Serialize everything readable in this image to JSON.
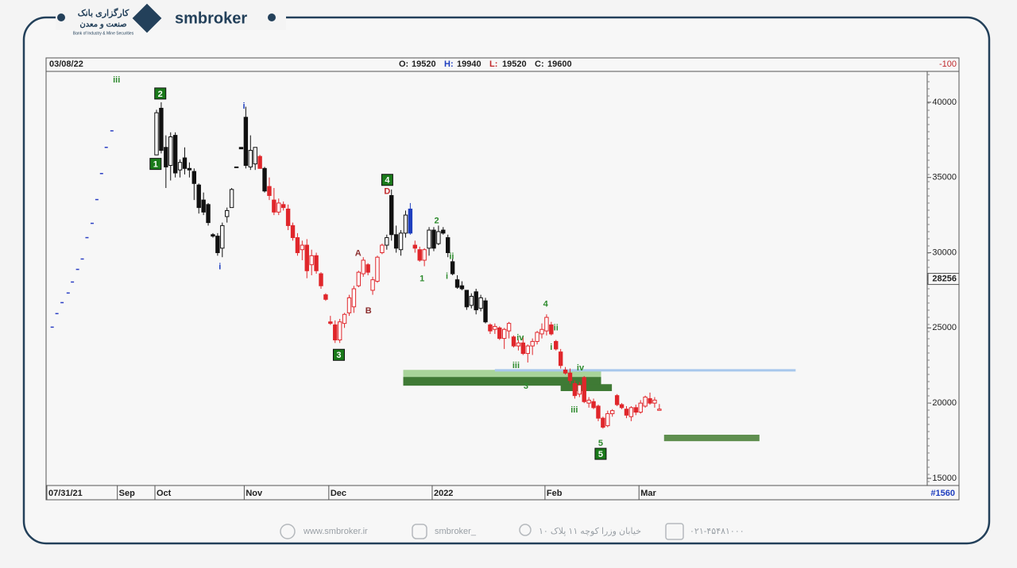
{
  "header": {
    "brand": "smbroker",
    "logo_line1": "کارگزاری بانک",
    "logo_line2": "صنعت و معدن",
    "logo_line3": "Bank of Industry & Mine Securities"
  },
  "footer": {
    "website": "www.smbroker.ir",
    "instagram": "smbroker_",
    "address": "خیابان وزرا کوچه ۱۱ پلاک ۱۰",
    "phone": "۰۲۱-۴۵۴۸۱۰۰۰"
  },
  "chart_data": {
    "type": "candlestick",
    "date": "03/08/22",
    "ohlc_header": [
      {
        "label": "O:",
        "value": 19520
      },
      {
        "label": "H:",
        "value": 19940
      },
      {
        "label": "L:",
        "value": 19520
      },
      {
        "label": "C:",
        "value": 19600
      }
    ],
    "corner_value": -100,
    "bar_count": "#1560",
    "price_marker": 28256,
    "xlim": [
      0.5,
      188
    ],
    "ylim": [
      14630,
      42050
    ],
    "xticks": [
      {
        "value": 1,
        "label": "07/31/21"
      },
      {
        "value": 16,
        "label": "Sep"
      },
      {
        "value": 24,
        "label": "Oct"
      },
      {
        "value": 43,
        "label": "Nov"
      },
      {
        "value": 61,
        "label": "Dec"
      },
      {
        "value": 83,
        "label": "2022"
      },
      {
        "value": 107,
        "label": "Feb"
      },
      {
        "value": 127,
        "label": "Mar"
      }
    ],
    "yticks": [
      15000,
      20000,
      25000,
      30000,
      35000,
      40000
    ],
    "series": [
      {
        "color": "#111111",
        "x": [
          24,
          25,
          26,
          27,
          28,
          29,
          30,
          31,
          32,
          33,
          34,
          35,
          36,
          37,
          38,
          39,
          40,
          41,
          42,
          43,
          44,
          45,
          47,
          73,
          74,
          75,
          76,
          77,
          82,
          83,
          84,
          85,
          86,
          87,
          88,
          89,
          90,
          91,
          92,
          93,
          94
        ],
        "ohlc": [
          [
            36500,
            39500,
            36500,
            39300
          ],
          [
            39600,
            40000,
            36600,
            36800
          ],
          [
            37000,
            37800,
            34300,
            35700
          ],
          [
            35800,
            38000,
            34800,
            37700
          ],
          [
            37800,
            38000,
            35000,
            35300
          ],
          [
            35500,
            36200,
            35000,
            36000
          ],
          [
            36300,
            37000,
            35200,
            35600
          ],
          [
            35600,
            36000,
            35000,
            35500
          ],
          [
            35400,
            35600,
            33500,
            34600
          ],
          [
            34500,
            34600,
            32600,
            33000
          ],
          [
            33500,
            34000,
            32500,
            32700
          ],
          [
            33200,
            33300,
            31800,
            32000
          ],
          [
            31200,
            31300,
            31000,
            31100
          ],
          [
            31100,
            31300,
            29800,
            30000
          ],
          [
            30300,
            32000,
            29700,
            31800
          ],
          [
            32400,
            33000,
            32000,
            32800
          ],
          [
            33000,
            34300,
            33000,
            34200
          ],
          [
            35700,
            35700,
            35700,
            35700
          ],
          [
            37000,
            37000,
            36900,
            36900
          ],
          [
            39000,
            39700,
            35600,
            35800
          ],
          [
            35700,
            37800,
            35500,
            36800
          ],
          [
            35900,
            37000,
            35500,
            37000
          ],
          [
            35600,
            35700,
            34000,
            34100
          ],
          [
            30500,
            31200,
            30200,
            31000
          ],
          [
            33800,
            34200,
            30800,
            31200
          ],
          [
            31200,
            31800,
            30000,
            30300
          ],
          [
            30200,
            31500,
            29800,
            31300
          ],
          [
            31300,
            32800,
            31000,
            32500
          ],
          [
            30300,
            31700,
            29800,
            31500
          ],
          [
            31500,
            31700,
            30100,
            30300
          ],
          [
            30600,
            31800,
            30500,
            31400
          ],
          [
            31500,
            31700,
            31200,
            31300
          ],
          [
            31000,
            31200,
            29700,
            30000
          ],
          [
            29400,
            29600,
            28500,
            28600
          ],
          [
            28200,
            28500,
            27600,
            27700
          ],
          [
            27800,
            28100,
            27500,
            27600
          ],
          [
            27500,
            27500,
            26200,
            26400
          ],
          [
            26500,
            27300,
            26300,
            27100
          ],
          [
            27400,
            27600,
            25900,
            26200
          ],
          [
            26300,
            27200,
            26100,
            27000
          ],
          [
            26800,
            27000,
            25300,
            25400
          ]
        ]
      },
      {
        "color": "#e0262b",
        "x": [
          46,
          48,
          49,
          50,
          51,
          52,
          53,
          54,
          55,
          56,
          57,
          58,
          59,
          60,
          61,
          62,
          63,
          64,
          65,
          66,
          67,
          68,
          69,
          70,
          71,
          72,
          79,
          80,
          81,
          95,
          96,
          97,
          98,
          99,
          100,
          101,
          102,
          103,
          104,
          105,
          106,
          107,
          108,
          109,
          110,
          111,
          112,
          113,
          114,
          115,
          116,
          117,
          118,
          119,
          120,
          121,
          122,
          123,
          124,
          125,
          126,
          127,
          128,
          129,
          130,
          131
        ],
        "ohlc": [
          [
            36400,
            36500,
            35600,
            35600
          ],
          [
            34400,
            35000,
            33500,
            33800
          ],
          [
            33500,
            34300,
            32500,
            32700
          ],
          [
            32700,
            33600,
            32500,
            33300
          ],
          [
            33200,
            33400,
            32800,
            33000
          ],
          [
            32900,
            33200,
            31500,
            31800
          ],
          [
            31800,
            32000,
            30800,
            31000
          ],
          [
            31000,
            31300,
            29800,
            30000
          ],
          [
            30200,
            30800,
            29500,
            30500
          ],
          [
            30500,
            30900,
            28300,
            28800
          ],
          [
            29200,
            30200,
            28500,
            29800
          ],
          [
            29800,
            30000,
            28600,
            28800
          ],
          [
            28600,
            28700,
            27600,
            27800
          ],
          [
            27200,
            27300,
            26800,
            26900
          ],
          [
            25400,
            25800,
            25200,
            25300
          ],
          [
            25200,
            25500,
            24000,
            24200
          ],
          [
            24200,
            25600,
            24000,
            25400
          ],
          [
            25300,
            26000,
            25000,
            25900
          ],
          [
            26000,
            27200,
            25800,
            27000
          ],
          [
            26400,
            27800,
            26000,
            27600
          ],
          [
            27800,
            28800,
            27700,
            28700
          ],
          [
            28600,
            29700,
            28400,
            29500
          ],
          [
            29200,
            29300,
            28500,
            28700
          ],
          [
            27500,
            28400,
            27200,
            28200
          ],
          [
            28100,
            29800,
            28000,
            29700
          ],
          [
            30000,
            30600,
            29900,
            30500
          ],
          [
            30500,
            30800,
            30000,
            30300
          ],
          [
            30200,
            30400,
            29400,
            29500
          ],
          [
            29500,
            30300,
            29100,
            30200
          ],
          [
            25200,
            25300,
            24600,
            24800
          ],
          [
            24900,
            25300,
            24600,
            25100
          ],
          [
            25000,
            25100,
            24200,
            24300
          ],
          [
            24300,
            25000,
            23600,
            24900
          ],
          [
            24800,
            25400,
            24300,
            25300
          ],
          [
            24400,
            24500,
            23700,
            23800
          ],
          [
            23800,
            24200,
            23500,
            24000
          ],
          [
            24000,
            24400,
            23200,
            23300
          ],
          [
            23300,
            23900,
            22700,
            23800
          ],
          [
            23800,
            24300,
            23200,
            24100
          ],
          [
            24100,
            24800,
            23900,
            24700
          ],
          [
            24600,
            25300,
            24300,
            24900
          ],
          [
            24800,
            25900,
            24500,
            25700
          ],
          [
            25200,
            25400,
            24500,
            24600
          ],
          [
            24100,
            24200,
            23500,
            23600
          ],
          [
            23400,
            23600,
            22300,
            22500
          ],
          [
            22200,
            22400,
            21900,
            22000
          ],
          [
            22000,
            22300,
            21300,
            21500
          ],
          [
            21300,
            21500,
            20300,
            20500
          ],
          [
            20600,
            21400,
            20400,
            21200
          ],
          [
            21700,
            21800,
            20000,
            20100
          ],
          [
            20000,
            20400,
            19700,
            20200
          ],
          [
            20100,
            20300,
            19600,
            19700
          ],
          [
            19800,
            19900,
            18800,
            19000
          ],
          [
            19000,
            19100,
            18300,
            18400
          ],
          [
            18500,
            19500,
            18400,
            19300
          ],
          [
            19300,
            19600,
            19100,
            19500
          ],
          [
            20500,
            20600,
            19800,
            19900
          ],
          [
            19900,
            20000,
            19600,
            19700
          ],
          [
            19600,
            19800,
            19000,
            19200
          ],
          [
            19100,
            19800,
            18800,
            19700
          ],
          [
            19700,
            19900,
            19200,
            19400
          ],
          [
            19400,
            20200,
            19300,
            20000
          ],
          [
            19800,
            20500,
            19700,
            20400
          ],
          [
            20300,
            20700,
            19900,
            20000
          ],
          [
            20000,
            20400,
            19700,
            20200
          ],
          [
            19520,
            19940,
            19520,
            19600
          ]
        ]
      },
      {
        "color": "#1f3fbf",
        "x": [
          78
        ],
        "ohlc": [
          [
            32900,
            33300,
            31200,
            31300
          ]
        ]
      }
    ],
    "sar": {
      "color": "#2b3fc4",
      "x": [
        1.8,
        2.8,
        3.9,
        5.2,
        6.1,
        7.2,
        8.2,
        9.2,
        10.3,
        11.3,
        12.3,
        13.3,
        14.5
      ],
      "values": [
        25050,
        25950,
        26680,
        27320,
        28050,
        28890,
        29580,
        31000,
        31950,
        33530,
        35260,
        37000,
        38100
      ]
    },
    "zones": [
      {
        "x": [
          76.5,
          118.6
        ],
        "y": [
          21740,
          22210
        ],
        "color": "#a8d49a"
      },
      {
        "x": [
          76.5,
          118.6
        ],
        "y": [
          21160,
          21740
        ],
        "color": "#3f7a35"
      },
      {
        "x": [
          96,
          160
        ],
        "y": [
          22100,
          22260
        ],
        "color": "#a8c8ec"
      },
      {
        "x": [
          110,
          120.9
        ],
        "y": [
          20800,
          21260
        ],
        "color": "#3f7a35"
      },
      {
        "x": [
          132,
          152.3
        ],
        "y": [
          17470,
          17900
        ],
        "color": "#5f8f4f"
      }
    ],
    "annotations": [
      {
        "text": "iii",
        "x": 15.5,
        "y": 41526,
        "color": "#2e8b2e"
      },
      {
        "text": "2",
        "x": 24.8,
        "y": 40580,
        "color": "#1a7a1a",
        "boxed": true
      },
      {
        "text": "1",
        "x": 23.8,
        "y": 35900,
        "color": "#1a7a1a",
        "boxed": true
      },
      {
        "text": "i",
        "x": 42.6,
        "y": 39790,
        "color": "#1f3fbf"
      },
      {
        "text": "i",
        "x": 37.5,
        "y": 29110,
        "color": "#1f3fbf"
      },
      {
        "text": "4",
        "x": 73.1,
        "y": 34840,
        "color": "#1a7a1a",
        "boxed": true
      },
      {
        "text": "D",
        "x": 73.1,
        "y": 34100,
        "color": "#c0282b"
      },
      {
        "text": "A",
        "x": 66.9,
        "y": 30000,
        "color": "#8b2e2e"
      },
      {
        "text": "B",
        "x": 69.1,
        "y": 26160,
        "color": "#8b2e2e"
      },
      {
        "text": "3",
        "x": 62.8,
        "y": 23210,
        "color": "#1a7a1a",
        "boxed": true
      },
      {
        "text": "2",
        "x": 83.6,
        "y": 32160,
        "color": "#2e8b2e"
      },
      {
        "text": "ii",
        "x": 86.8,
        "y": 29790,
        "color": "#2e8b2e"
      },
      {
        "text": "1",
        "x": 80.5,
        "y": 28320,
        "color": "#2e8b2e"
      },
      {
        "text": "i",
        "x": 85.8,
        "y": 28470,
        "color": "#2e8b2e"
      },
      {
        "text": "4",
        "x": 106.8,
        "y": 26630,
        "color": "#2e8b2e"
      },
      {
        "text": "ii",
        "x": 109,
        "y": 25050,
        "color": "#2e8b2e"
      },
      {
        "text": "i",
        "x": 108,
        "y": 23740,
        "color": "#2e8b2e"
      },
      {
        "text": "iv",
        "x": 101.4,
        "y": 24370,
        "color": "#2e8b2e"
      },
      {
        "text": "iii",
        "x": 100.5,
        "y": 22530,
        "color": "#2e8b2e"
      },
      {
        "text": "3",
        "x": 102.6,
        "y": 21160,
        "color": "#2e8b2e"
      },
      {
        "text": "iv",
        "x": 114.2,
        "y": 22370,
        "color": "#2e8b2e"
      },
      {
        "text": "iii",
        "x": 112.9,
        "y": 19580,
        "color": "#2e8b2e"
      },
      {
        "text": "5",
        "x": 118.5,
        "y": 17368,
        "color": "#2e8b2e"
      },
      {
        "text": "5",
        "x": 118.5,
        "y": 16630,
        "color": "#1a7a1a",
        "boxed": true
      }
    ]
  }
}
